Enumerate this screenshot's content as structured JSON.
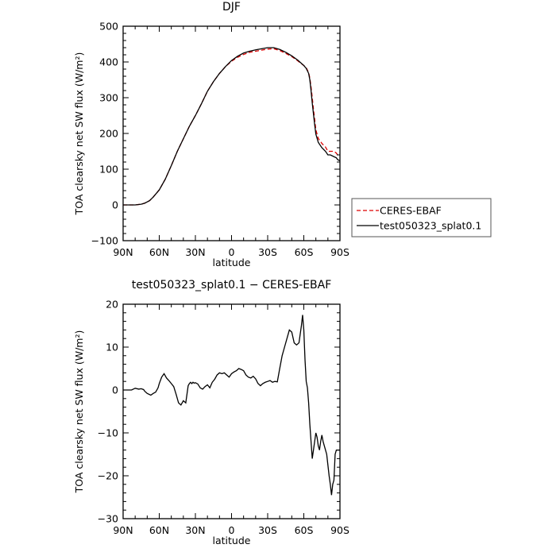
{
  "chart_data": [
    {
      "type": "line",
      "title": "DJF",
      "xlabel": "latitude",
      "ylabel": "TOA clearsky net SW flux (W/m²)",
      "xlim": [
        -90,
        90
      ],
      "ylim": [
        -100,
        500
      ],
      "x_ticks": [
        {
          "value": -90,
          "label": "90N"
        },
        {
          "value": -60,
          "label": "60N"
        },
        {
          "value": -30,
          "label": "30N"
        },
        {
          "value": 0,
          "label": "0"
        },
        {
          "value": 30,
          "label": "30S"
        },
        {
          "value": 60,
          "label": "60S"
        },
        {
          "value": 90,
          "label": "90S"
        }
      ],
      "y_ticks": [
        -100,
        0,
        100,
        200,
        300,
        400,
        500
      ],
      "legend_position": "right",
      "series": [
        {
          "name": "CERES-EBAF",
          "color": "#dd0000",
          "dashed": true,
          "x": [
            -90,
            -80,
            -75,
            -72,
            -68,
            -65,
            -60,
            -55,
            -50,
            -45,
            -40,
            -35,
            -30,
            -25,
            -20,
            -15,
            -10,
            -5,
            0,
            5,
            10,
            15,
            20,
            25,
            30,
            35,
            40,
            45,
            50,
            55,
            60,
            62,
            64,
            65,
            66,
            67,
            68,
            69,
            70,
            72,
            75,
            78,
            80,
            82,
            85,
            87,
            88,
            89,
            90
          ],
          "y": [
            0,
            0,
            2,
            5,
            12,
            22,
            42,
            72,
            110,
            150,
            185,
            220,
            250,
            283,
            318,
            345,
            368,
            387,
            402,
            413,
            421,
            427,
            430,
            433,
            436,
            437,
            432,
            424,
            415,
            403,
            390,
            384,
            370,
            355,
            330,
            300,
            268,
            240,
            210,
            186,
            172,
            162,
            150,
            150,
            150,
            145,
            140,
            140,
            140
          ]
        },
        {
          "name": "test050323_splat0.1",
          "color": "#000000",
          "dashed": false,
          "x": [
            -90,
            -80,
            -75,
            -72,
            -68,
            -65,
            -60,
            -55,
            -50,
            -45,
            -40,
            -35,
            -30,
            -25,
            -20,
            -15,
            -10,
            -5,
            0,
            5,
            10,
            15,
            20,
            25,
            30,
            35,
            40,
            45,
            50,
            55,
            60,
            62,
            64,
            65,
            66,
            67,
            68,
            69,
            70,
            72,
            75,
            78,
            80,
            82,
            85,
            87,
            88,
            89,
            90
          ],
          "y": [
            0,
            0,
            2,
            5,
            12,
            22,
            42,
            72,
            110,
            150,
            185,
            220,
            250,
            283,
            318,
            345,
            368,
            387,
            404,
            416,
            425,
            430,
            434,
            437,
            440,
            440,
            435,
            427,
            417,
            405,
            390,
            382,
            368,
            350,
            320,
            285,
            255,
            225,
            198,
            175,
            160,
            150,
            140,
            140,
            135,
            132,
            127,
            125,
            124
          ]
        }
      ]
    },
    {
      "type": "line",
      "title": "test050323_splat0.1 − CERES-EBAF",
      "xlabel": "latitude",
      "ylabel": "TOA clearsky net SW flux (W/m²)",
      "xlim": [
        -90,
        90
      ],
      "ylim": [
        -30,
        20
      ],
      "x_ticks": [
        {
          "value": -90,
          "label": "90N"
        },
        {
          "value": -60,
          "label": "60N"
        },
        {
          "value": -30,
          "label": "30N"
        },
        {
          "value": 0,
          "label": "0"
        },
        {
          "value": 30,
          "label": "30S"
        },
        {
          "value": 60,
          "label": "60S"
        },
        {
          "value": 90,
          "label": "90S"
        }
      ],
      "y_ticks": [
        -30,
        -20,
        -10,
        0,
        10,
        20
      ],
      "series": [
        {
          "color": "#000000",
          "dashed": false,
          "x": [
            -90,
            -83,
            -80,
            -77,
            -75,
            -73,
            -72,
            -70,
            -67,
            -65,
            -63,
            -61,
            -60,
            -58,
            -56,
            -54,
            -52,
            -50,
            -48,
            -46,
            -44,
            -42,
            -40,
            -38,
            -36,
            -35,
            -34,
            -33,
            -32,
            -31,
            -30,
            -28,
            -26,
            -24,
            -22,
            -20,
            -18,
            -16,
            -14,
            -12,
            -10,
            -8,
            -6,
            -4,
            -2,
            0,
            2,
            4,
            6,
            8,
            10,
            12,
            14,
            16,
            18,
            20,
            22,
            24,
            26,
            28,
            30,
            32,
            34,
            36,
            38,
            40,
            42,
            44,
            46,
            48,
            50,
            52,
            54,
            56,
            58,
            59,
            60,
            61,
            62,
            63,
            64,
            65,
            66,
            67,
            68,
            69,
            70,
            71,
            72,
            73,
            74,
            75,
            76,
            77,
            78,
            79,
            80,
            81,
            82,
            83,
            84,
            85,
            86,
            87,
            88,
            89,
            90
          ],
          "y": [
            0,
            0,
            0.4,
            0.2,
            0.3,
            0.1,
            -0.3,
            -0.8,
            -1.2,
            -0.8,
            -0.5,
            0.5,
            1.5,
            3.0,
            3.8,
            2.8,
            2.2,
            1.5,
            0.8,
            -1.0,
            -3.0,
            -3.5,
            -2.5,
            -3.0,
            1.0,
            1.5,
            1.8,
            1.5,
            1.8,
            1.6,
            1.7,
            1.4,
            0.5,
            0.2,
            0.8,
            1.2,
            0.5,
            1.8,
            2.5,
            3.5,
            4.0,
            3.8,
            4.0,
            3.5,
            3.0,
            3.8,
            4.2,
            4.5,
            5.0,
            4.8,
            4.5,
            3.5,
            3.0,
            2.8,
            3.2,
            2.6,
            1.5,
            1.0,
            1.5,
            1.8,
            2.0,
            2.2,
            1.8,
            2.0,
            1.9,
            5.0,
            8.0,
            10.0,
            12.0,
            14.0,
            13.5,
            11.0,
            10.5,
            11.0,
            15.0,
            17.5,
            14.0,
            7.0,
            2.0,
            0.5,
            -3.0,
            -8.0,
            -12.0,
            -16.0,
            -14.0,
            -12.0,
            -10.0,
            -11.0,
            -13.0,
            -14.0,
            -12.0,
            -10.5,
            -12.0,
            -13.0,
            -14.0,
            -15.0,
            -17.5,
            -20.0,
            -22.0,
            -24.5,
            -22.0,
            -21.0,
            -15.0,
            -14.0,
            -14.0,
            -14.0,
            -14.0
          ]
        }
      ]
    }
  ]
}
